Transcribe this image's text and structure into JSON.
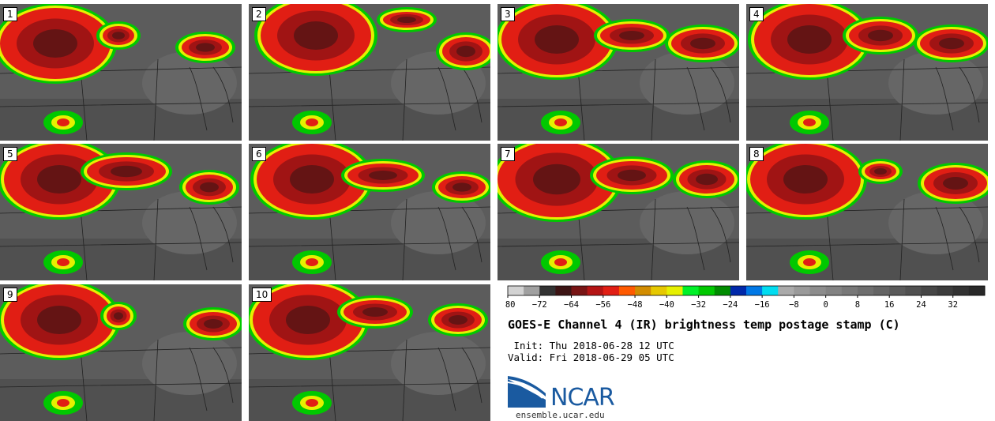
{
  "panels": [
    {
      "label": "1"
    },
    {
      "label": "2"
    },
    {
      "label": "3"
    },
    {
      "label": "4"
    },
    {
      "label": "5"
    },
    {
      "label": "6"
    },
    {
      "label": "7"
    },
    {
      "label": "8"
    },
    {
      "label": "9"
    },
    {
      "label": "10"
    }
  ],
  "colorbar": {
    "colors": [
      "#d2d2d2",
      "#a0a0a0",
      "#323232",
      "#3c1414",
      "#781414",
      "#b41414",
      "#e11e14",
      "#ff5a00",
      "#d28c00",
      "#e6c800",
      "#e6f000",
      "#00f028",
      "#00c800",
      "#008c00",
      "#0028aa",
      "#0078e6",
      "#00dcf0",
      "#aaaaaa",
      "#9a9a9a",
      "#8c8c8c",
      "#828282",
      "#787878",
      "#6e6e6e",
      "#646464",
      "#5a5a5a",
      "#505050",
      "#464646",
      "#3c3c3c",
      "#323232",
      "#282828"
    ],
    "tick_labels": [
      "−80",
      "−72",
      "−64",
      "−56",
      "−48",
      "−40",
      "−32",
      "−24",
      "−16",
      "−8",
      "0",
      "8",
      "16",
      "24",
      "32"
    ]
  },
  "title": "GOES-E Channel 4 (IR) brightness temp postage stamp (C)",
  "init": " Init: Thu 2018-06-28 12 UTC",
  "valid": "Valid: Fri 2018-06-29 05 UTC",
  "logo": {
    "text": "NCAR",
    "color": "#1a5aa0"
  },
  "site": "ensemble.ucar.edu"
}
